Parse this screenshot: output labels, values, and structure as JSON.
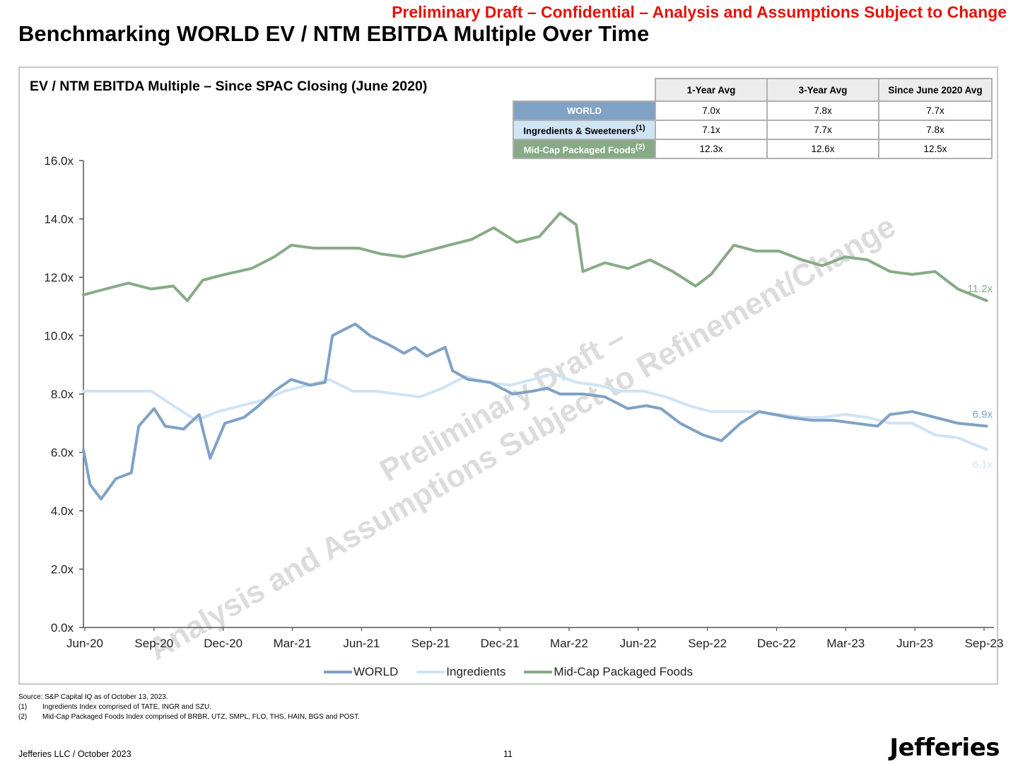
{
  "banner": "Preliminary Draft – Confidential – Analysis and Assumptions Subject to Change",
  "page_title": "Benchmarking WORLD EV / NTM EBITDA Multiple Over Time",
  "colors": {
    "world": "#7fa2c5",
    "ingredients": "#cfe4f5",
    "midcap": "#87ab86",
    "banner_red": "#e3120b"
  },
  "stats_table": {
    "headers": [
      "1-Year Avg",
      "3-Year Avg",
      "Since June 2020 Avg"
    ],
    "rows": [
      {
        "label": "WORLD",
        "values": [
          "7.0x",
          "7.8x",
          "7.7x"
        ]
      },
      {
        "label": "Ingredients & Sweeteners",
        "sup": "(1)",
        "values": [
          "7.1x",
          "7.7x",
          "7.8x"
        ]
      },
      {
        "label": "Mid-Cap Packaged Foods",
        "sup": "(2)",
        "values": [
          "12.3x",
          "12.6x",
          "12.5x"
        ]
      }
    ]
  },
  "chart_data": {
    "type": "line",
    "title": "EV / NTM EBITDA Multiple – Since SPAC Closing (June 2020)",
    "x_tick_labels": [
      "Jun-20",
      "Sep-20",
      "Dec-20",
      "Mar-21",
      "Jun-21",
      "Sep-21",
      "Dec-21",
      "Mar-22",
      "Jun-22",
      "Sep-22",
      "Dec-22",
      "Mar-23",
      "Jun-23",
      "Sep-23"
    ],
    "y_tick_labels": [
      "0.0x",
      "2.0x",
      "4.0x",
      "6.0x",
      "8.0x",
      "10.0x",
      "12.0x",
      "14.0x",
      "16.0x"
    ],
    "ylim": [
      0,
      16
    ],
    "x_range": [
      "2020-06",
      "2023-10"
    ],
    "grid": false,
    "legend": "bottom",
    "series": [
      {
        "name": "WORLD",
        "end_label": "6.9x",
        "points": [
          [
            "2020-06",
            6.1
          ],
          [
            "2020-06-10",
            4.9
          ],
          [
            "2020-06-25",
            4.4
          ],
          [
            "2020-07-15",
            5.1
          ],
          [
            "2020-08-05",
            5.3
          ],
          [
            "2020-08-15",
            6.9
          ],
          [
            "2020-09-05",
            7.5
          ],
          [
            "2020-09-20",
            6.9
          ],
          [
            "2020-10-15",
            6.8
          ],
          [
            "2020-11-05",
            7.3
          ],
          [
            "2020-11-20",
            5.8
          ],
          [
            "2020-12-10",
            7.0
          ],
          [
            "2021-01-05",
            7.2
          ],
          [
            "2021-01-25",
            7.6
          ],
          [
            "2021-02-15",
            8.1
          ],
          [
            "2021-03-10",
            8.5
          ],
          [
            "2021-04-05",
            8.3
          ],
          [
            "2021-04-25",
            8.4
          ],
          [
            "2021-05-05",
            10.0
          ],
          [
            "2021-05-20",
            10.2
          ],
          [
            "2021-06-05",
            10.4
          ],
          [
            "2021-06-25",
            10.0
          ],
          [
            "2021-07-20",
            9.7
          ],
          [
            "2021-08-10",
            9.4
          ],
          [
            "2021-08-25",
            9.6
          ],
          [
            "2021-09-10",
            9.3
          ],
          [
            "2021-10-05",
            9.6
          ],
          [
            "2021-10-15",
            8.8
          ],
          [
            "2021-11-05",
            8.5
          ],
          [
            "2021-12-05",
            8.4
          ],
          [
            "2022-01-05",
            8.0
          ],
          [
            "2022-02-01",
            8.1
          ],
          [
            "2022-02-20",
            8.2
          ],
          [
            "2022-03-10",
            8.0
          ],
          [
            "2022-04-10",
            8.0
          ],
          [
            "2022-05-10",
            7.9
          ],
          [
            "2022-06-10",
            7.5
          ],
          [
            "2022-07-05",
            7.6
          ],
          [
            "2022-07-25",
            7.5
          ],
          [
            "2022-08-20",
            7.0
          ],
          [
            "2022-09-20",
            6.6
          ],
          [
            "2022-10-15",
            6.4
          ],
          [
            "2022-11-10",
            7.0
          ],
          [
            "2022-12-05",
            7.4
          ],
          [
            "2023-01-15",
            7.2
          ],
          [
            "2023-02-15",
            7.1
          ],
          [
            "2023-03-15",
            7.1
          ],
          [
            "2023-04-15",
            7.0
          ],
          [
            "2023-05-15",
            6.9
          ],
          [
            "2023-06-01",
            7.3
          ],
          [
            "2023-07-01",
            7.4
          ],
          [
            "2023-08-01",
            7.2
          ],
          [
            "2023-09-01",
            7.0
          ],
          [
            "2023-10-10",
            6.9
          ]
        ]
      },
      {
        "name": "Ingredients",
        "end_label": "6.1x",
        "points": [
          [
            "2020-06",
            8.1
          ],
          [
            "2020-07-01",
            8.1
          ],
          [
            "2020-08-01",
            8.1
          ],
          [
            "2020-09-01",
            8.1
          ],
          [
            "2020-10-01",
            7.6
          ],
          [
            "2020-11-01",
            7.1
          ],
          [
            "2020-12-01",
            7.4
          ],
          [
            "2021-01-01",
            7.6
          ],
          [
            "2021-02-01",
            7.8
          ],
          [
            "2021-03-01",
            8.1
          ],
          [
            "2021-04-01",
            8.3
          ],
          [
            "2021-05-01",
            8.5
          ],
          [
            "2021-06-01",
            8.1
          ],
          [
            "2021-07-01",
            8.1
          ],
          [
            "2021-08-01",
            8.0
          ],
          [
            "2021-09-01",
            7.9
          ],
          [
            "2021-10-01",
            8.2
          ],
          [
            "2021-11-01",
            8.6
          ],
          [
            "2021-12-01",
            8.4
          ],
          [
            "2022-01-01",
            8.3
          ],
          [
            "2022-02-01",
            8.5
          ],
          [
            "2022-03-01",
            8.7
          ],
          [
            "2022-04-01",
            8.4
          ],
          [
            "2022-05-01",
            8.3
          ],
          [
            "2022-06-01",
            8.1
          ],
          [
            "2022-07-01",
            8.1
          ],
          [
            "2022-08-01",
            7.9
          ],
          [
            "2022-09-01",
            7.6
          ],
          [
            "2022-10-01",
            7.4
          ],
          [
            "2022-11-01",
            7.4
          ],
          [
            "2022-12-01",
            7.4
          ],
          [
            "2023-01-01",
            7.3
          ],
          [
            "2023-02-01",
            7.2
          ],
          [
            "2023-03-01",
            7.2
          ],
          [
            "2023-04-01",
            7.3
          ],
          [
            "2023-05-01",
            7.2
          ],
          [
            "2023-06-01",
            7.0
          ],
          [
            "2023-07-01",
            7.0
          ],
          [
            "2023-08-01",
            6.6
          ],
          [
            "2023-09-01",
            6.5
          ],
          [
            "2023-10-10",
            6.1
          ]
        ]
      },
      {
        "name": "Mid-Cap Packaged Foods",
        "end_label": "11.2x",
        "points": [
          [
            "2020-06",
            11.4
          ],
          [
            "2020-07-01",
            11.6
          ],
          [
            "2020-08-01",
            11.8
          ],
          [
            "2020-09-01",
            11.6
          ],
          [
            "2020-10-01",
            11.7
          ],
          [
            "2020-10-20",
            11.2
          ],
          [
            "2020-11-10",
            11.9
          ],
          [
            "2020-12-10",
            12.1
          ],
          [
            "2021-01-15",
            12.3
          ],
          [
            "2021-02-15",
            12.7
          ],
          [
            "2021-03-10",
            13.1
          ],
          [
            "2021-04-10",
            13.0
          ],
          [
            "2021-05-10",
            13.0
          ],
          [
            "2021-06-10",
            13.0
          ],
          [
            "2021-07-10",
            12.8
          ],
          [
            "2021-08-10",
            12.7
          ],
          [
            "2021-09-10",
            12.9
          ],
          [
            "2021-10-10",
            13.1
          ],
          [
            "2021-11-10",
            13.3
          ],
          [
            "2021-12-10",
            13.7
          ],
          [
            "2022-01-10",
            13.2
          ],
          [
            "2022-02-10",
            13.4
          ],
          [
            "2022-03-10",
            14.2
          ],
          [
            "2022-04-01",
            13.8
          ],
          [
            "2022-04-10",
            12.2
          ],
          [
            "2022-05-10",
            12.5
          ],
          [
            "2022-06-10",
            12.3
          ],
          [
            "2022-07-10",
            12.6
          ],
          [
            "2022-08-10",
            12.2
          ],
          [
            "2022-09-10",
            11.7
          ],
          [
            "2022-10-01",
            12.1
          ],
          [
            "2022-11-01",
            13.1
          ],
          [
            "2022-12-01",
            12.9
          ],
          [
            "2023-01-01",
            12.9
          ],
          [
            "2023-02-01",
            12.6
          ],
          [
            "2023-03-01",
            12.4
          ],
          [
            "2023-04-01",
            12.7
          ],
          [
            "2023-05-01",
            12.6
          ],
          [
            "2023-06-01",
            12.2
          ],
          [
            "2023-07-01",
            12.1
          ],
          [
            "2023-08-01",
            12.2
          ],
          [
            "2023-09-01",
            11.6
          ],
          [
            "2023-10-10",
            11.2
          ]
        ]
      }
    ]
  },
  "watermark": [
    "Preliminary Draft –",
    "Analysis and Assumptions Subject to Refinement/Change"
  ],
  "sources": {
    "line1": "Source: S&P Capital IQ as of October 13, 2023.",
    "notes": [
      {
        "num": "(1)",
        "text": "Ingredients Index comprised of TATE, INGR and SZU."
      },
      {
        "num": "(2)",
        "text": "Mid-Cap Packaged Foods Index comprised of BRBR, UTZ, SMPL, FLO, THS, HAIN, BGS and POST."
      }
    ]
  },
  "footer": {
    "left": "Jefferies LLC  /  October 2023",
    "page": "11",
    "logo": "Jefferies"
  }
}
